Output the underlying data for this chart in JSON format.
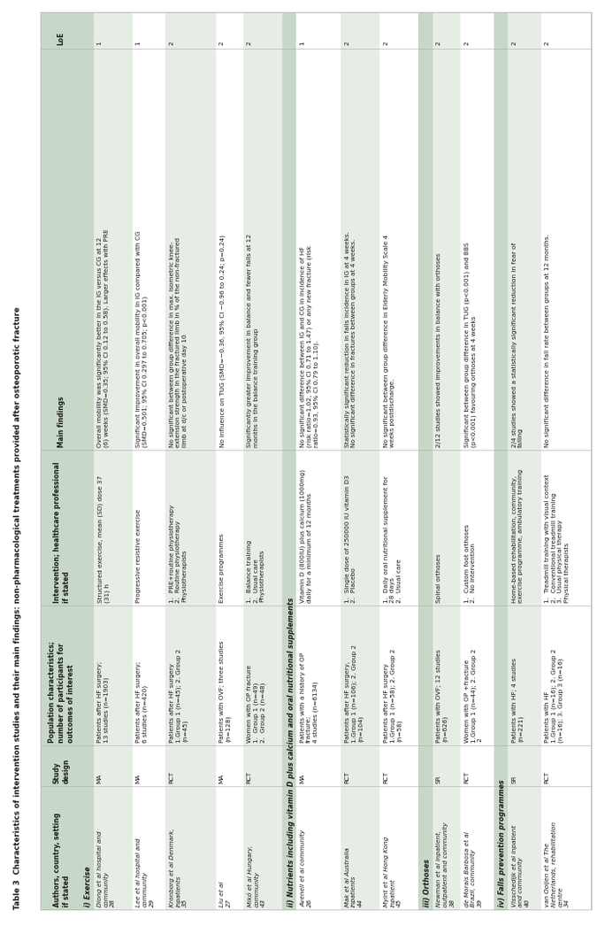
{
  "title": "Table 3  Characteristics of intervention studies and their main findings: non-pharmacological treatments provided after osteoporotic fracture",
  "columns": [
    "Authors, country, setting\nif stated",
    "Study\ndesign",
    "Population characteristics;\nnumber of participants for\noutcomes of interest",
    "Intervention; healthcare professional\nif stated",
    "Main findings",
    "LoE"
  ],
  "rows": [
    {
      "author": "Diong et al hospital and\ncommunity",
      "author_sup": "28",
      "design": "MA",
      "population": "Patients after HF surgery;\n13 studies (n=1903)",
      "intervention": "Structured exercise, mean (SD) dose 37\n(31) h",
      "findings": "Overall mobility was significantly better in the IG versus CG at 12\n(6) weeks (SMD=0.35; 95% CI 0.12 to 0.58). Larger effects with PRE",
      "loe": "1",
      "shaded": true
    },
    {
      "author": "Lee et al hospital and\ncommunity",
      "author_sup": "29",
      "design": "MA",
      "population": "Patients after HF surgery;\n6 studies (n=420)",
      "intervention": "Progressive resistive exercise",
      "findings": "Significant improvement in overall mobility in IG compared with CG\n(SMD=0.501; 95% CI 0.297 to 0.705; p<0.001)",
      "loe": "1",
      "shaded": false
    },
    {
      "author": "Kronborg et al Denmark,\ninpatients",
      "author_sup": "35",
      "design": "RCT",
      "population": "Patients after HF surgery\n1.Group 1 (n=45); 2. Group 2\n(n=45)",
      "intervention": "1.  PRE+routine physiotherapy\n2.  Routine physiotherapy\nPhysiotherapists",
      "findings": "No significant between group difference in max. isometric knee-\nextension strength in the fractured limb in % of the non-fractured\nlimb at d/c or postoperative day 10",
      "loe": "2",
      "shaded": true
    },
    {
      "author": "Liu et al",
      "author_sup": "27",
      "design": "MA",
      "population": "Patients with OVF; three studies\n(n=128)",
      "intervention": "Exercise programmes",
      "findings": "No influence on TUG (SMD=−0.36, 95% CI −0.96 to 0.24; p=0.24)",
      "loe": "2",
      "shaded": false
    },
    {
      "author": "Mikó et al Hungary,\ncommunity",
      "author_sup": "43",
      "design": "RCT",
      "population": "Women with OP fracture\n1.  Group 1 (n=49)\n2.  Group 2 (n=48)",
      "intervention": "1.  Balance training\n2.  Usual care\nPhysiotherapists",
      "findings": "Significantly greater improvement in balance and fewer falls at 12\nmonths in the balance training group",
      "loe": "2",
      "shaded": true
    },
    {
      "author": "Avenell et al community",
      "author_sup": "26",
      "design": "MA",
      "population": "Patients with a history of OP\nfracture;\n4 studies (n=6134)",
      "intervention": "Vitamin D (800IU) plus calcium (1000mg)\ndaily for a minimum of 12 months",
      "findings": "No significant difference between IG and CG in incidence of HF\n(risk ratio=1.02, 95% CI 0.71 to 1.47) or any new fracture (risk\nratio=0.93, 95% CI 0.79 to 1.10).",
      "loe": "1",
      "shaded": false
    },
    {
      "author": "Mak et al Australia\ninpatients",
      "author_sup": "44",
      "design": "RCT",
      "population": "Patients after HF surgery,\n1.Group 1 (n=106); 2. Group 2\n(n=104)",
      "intervention": "1.  Single dose of 250000 IU vitamin D3\n2.  Placebo",
      "findings": "Statistically significant reduction in falls incidence in IG at 4 weeks.\nNo significant difference in fractures between groups at 4 weeks.",
      "loe": "2",
      "shaded": true
    },
    {
      "author": "Myint et al Hong Kong\ninpatient",
      "author_sup": "45",
      "design": "RCT",
      "population": "Patients after HF surgery\n1.Group 1 (n=58); 2. Group 2\n(n=58)",
      "intervention": "1.  Daily oral nutritional supplement for\n28 days\n2.  Usual care",
      "findings": "No significant between group difference in Elderly Mobility Scale 4\nweeks postdischarge.",
      "loe": "2",
      "shaded": false
    },
    {
      "author": "Newman et al inpatient,\noutpatient and community",
      "author_sup": "38",
      "design": "SR",
      "population": "Patients with OVF; 12 studies\n(n=626)",
      "intervention": "Spinal orthoses",
      "findings": "2/12 studies showed improvements in balance with orthoses",
      "loe": "2",
      "shaded": true
    },
    {
      "author": "de Morais Barbosa et al\nBrazil, community",
      "author_sup": "39",
      "design": "RCT",
      "population": "Women with OP +fracture\n1.Group 1 (n=44); 2. Group 2\n2",
      "intervention": "1.  Custom foot orthoses\n2.  No intervention",
      "findings": "Significant between group difference in TUG (p<0.001) and BBS\n(p<0.001) favouring orthoses at 4 weeks",
      "loe": "2",
      "shaded": false
    },
    {
      "author": "Visschedijk et al inpatient\nand community",
      "author_sup": "40",
      "design": "SR",
      "population": "Patients with HF; 4 studies\n(n=221)",
      "intervention": "Home-based rehabilitation, community,\nexercise programme, ambulatory training",
      "findings": "2/4 studies showed a statistically significant reduction in fear of\nfalling",
      "loe": "2",
      "shaded": true
    },
    {
      "author": "van Ooijen et al The\nNetherlands, rehabilitation\ncentre",
      "author_sup": "34",
      "design": "RCT",
      "population": "Patients with HF\n1.Group 1 (n=16); 2. Group 2\n(n=16); 3. Group 3 (n=16)",
      "intervention": "1.  Treadmill training with visual context\n2.  Conventional treadmill training\n3.  Usual physical therapy\nPhysical therapists",
      "findings": "No significant difference in fall rate between groups at 12 months.",
      "loe": "2",
      "shaded": false
    }
  ],
  "section_headers": [
    {
      "label": "i) Exercise",
      "before_row": 0
    },
    {
      "label": "ii) Nutrients including vitamin D plus calcium and oral nutritional supplements",
      "before_row": 5
    },
    {
      "label": "iii) Orthoses",
      "before_row": 8
    },
    {
      "label": "iv) Falls prevention programmes",
      "before_row": 10
    }
  ],
  "header_bg": "#c8d8c8",
  "shaded_bg": "#e5ede5",
  "white_bg": "#ffffff",
  "section_bg": "#c8d8c8",
  "border_color": "#aaaaaa",
  "text_color": "#1a1a1a",
  "title_color": "#1a1a1a",
  "col_widths_pts": [
    95,
    32,
    108,
    120,
    310,
    28
  ]
}
